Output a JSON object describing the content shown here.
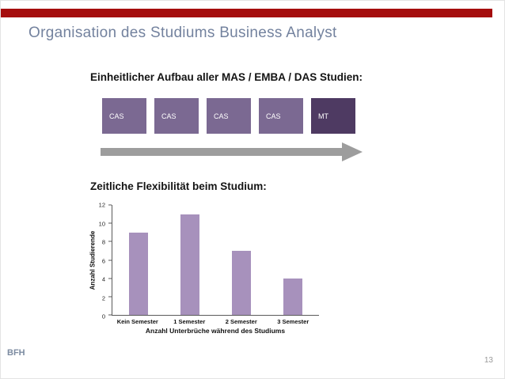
{
  "slide": {
    "title": "Organisation des Studiums Business Analyst",
    "footer_left": "BFH",
    "page_number": "13"
  },
  "sections": {
    "structure": {
      "heading": "Einheitlicher Aufbau aller MAS / EMBA / DAS Studien:",
      "boxes": [
        {
          "label": "CAS"
        },
        {
          "label": "CAS"
        },
        {
          "label": "CAS"
        },
        {
          "label": "CAS"
        },
        {
          "label": "MT"
        }
      ]
    },
    "flexibility": {
      "heading": "Zeitliche Flexibilität beim Studium:"
    }
  },
  "chart_data": {
    "type": "bar",
    "categories": [
      "Kein Semester",
      "1 Semester",
      "2 Semester",
      "3 Semester"
    ],
    "values": [
      9,
      11,
      7,
      4
    ],
    "title": "",
    "xlabel": "Anzahl Unterbrüche während des Studiums",
    "ylabel": "Anzahl Studierende",
    "ylim": [
      0,
      12
    ],
    "ytick_step": 2,
    "legend": false,
    "grid": false
  },
  "colors": {
    "top_bar": "#a50d0d",
    "title_text": "#73829e",
    "cas_box": "#7b6992",
    "mt_box": "#4e3a62",
    "bar_fill": "#a791bc",
    "arrow": "#9d9d9d",
    "footer_text": "#7c8ba1"
  }
}
